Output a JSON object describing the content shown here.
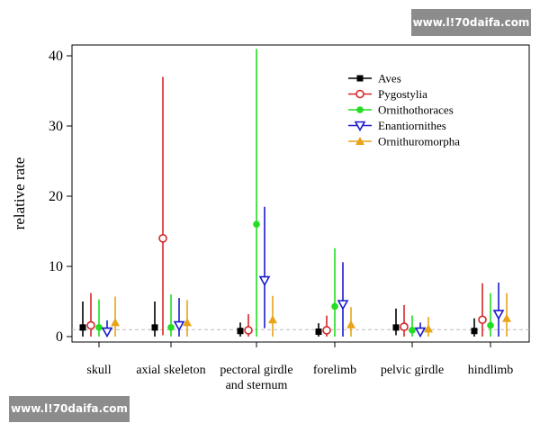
{
  "watermark_top": "www.l!70daifa.com",
  "watermark_bottom": "www.l!70daifa.com",
  "chart_data": {
    "type": "scatter",
    "subtype": "point-with-interval",
    "ylabel": "relative rate",
    "xlabel": "",
    "ylim": [
      0,
      42
    ],
    "yticks": [
      0,
      10,
      20,
      30,
      40
    ],
    "reference_line": 1,
    "legend_position": "top-right",
    "categories": [
      [
        "skull"
      ],
      [
        "axial skeleton"
      ],
      [
        "pectoral girdle",
        "and sternum"
      ],
      [
        "forelimb"
      ],
      [
        "pelvic girdle"
      ],
      [
        "hindlimb"
      ]
    ],
    "series": [
      {
        "name": "Aves",
        "color": "#000000",
        "marker": "square",
        "values": [
          1.3,
          1.3,
          0.8,
          0.7,
          1.3,
          0.8
        ],
        "lower": [
          0.0,
          0.0,
          0.0,
          0.0,
          0.2,
          0.0
        ],
        "upper": [
          5.0,
          5.0,
          2.0,
          1.9,
          4.0,
          2.6
        ]
      },
      {
        "name": "Pygostylia",
        "color": "#d62728",
        "marker": "circle-open",
        "values": [
          1.6,
          14.0,
          0.9,
          0.9,
          1.4,
          2.4
        ],
        "lower": [
          0.0,
          0.2,
          0.0,
          0.0,
          0.0,
          0.0
        ],
        "upper": [
          6.2,
          37.0,
          3.2,
          3.0,
          4.5,
          7.6
        ]
      },
      {
        "name": "Ornithothoraces",
        "color": "#22dd22",
        "marker": "circle",
        "values": [
          1.3,
          1.3,
          16.0,
          4.3,
          0.9,
          1.6
        ],
        "lower": [
          0.0,
          0.0,
          0.0,
          0.0,
          0.0,
          0.0
        ],
        "upper": [
          5.3,
          6.0,
          41.0,
          12.6,
          3.0,
          6.2
        ]
      },
      {
        "name": "Enantiornithes",
        "color": "#1a1acc",
        "marker": "triangle-down-open",
        "values": [
          0.7,
          1.6,
          8.0,
          4.6,
          0.7,
          3.2
        ],
        "lower": [
          0.0,
          0.0,
          1.2,
          0.0,
          0.0,
          0.0
        ],
        "upper": [
          2.3,
          5.5,
          18.5,
          10.6,
          2.0,
          7.7
        ]
      },
      {
        "name": "Ornithuromorpha",
        "color": "#e8a317",
        "marker": "triangle-up",
        "values": [
          2.0,
          2.0,
          2.4,
          1.7,
          1.1,
          2.6
        ],
        "lower": [
          0.0,
          0.0,
          0.0,
          0.0,
          0.0,
          0.0
        ],
        "upper": [
          5.7,
          5.2,
          5.8,
          4.2,
          2.8,
          6.2
        ]
      }
    ]
  }
}
